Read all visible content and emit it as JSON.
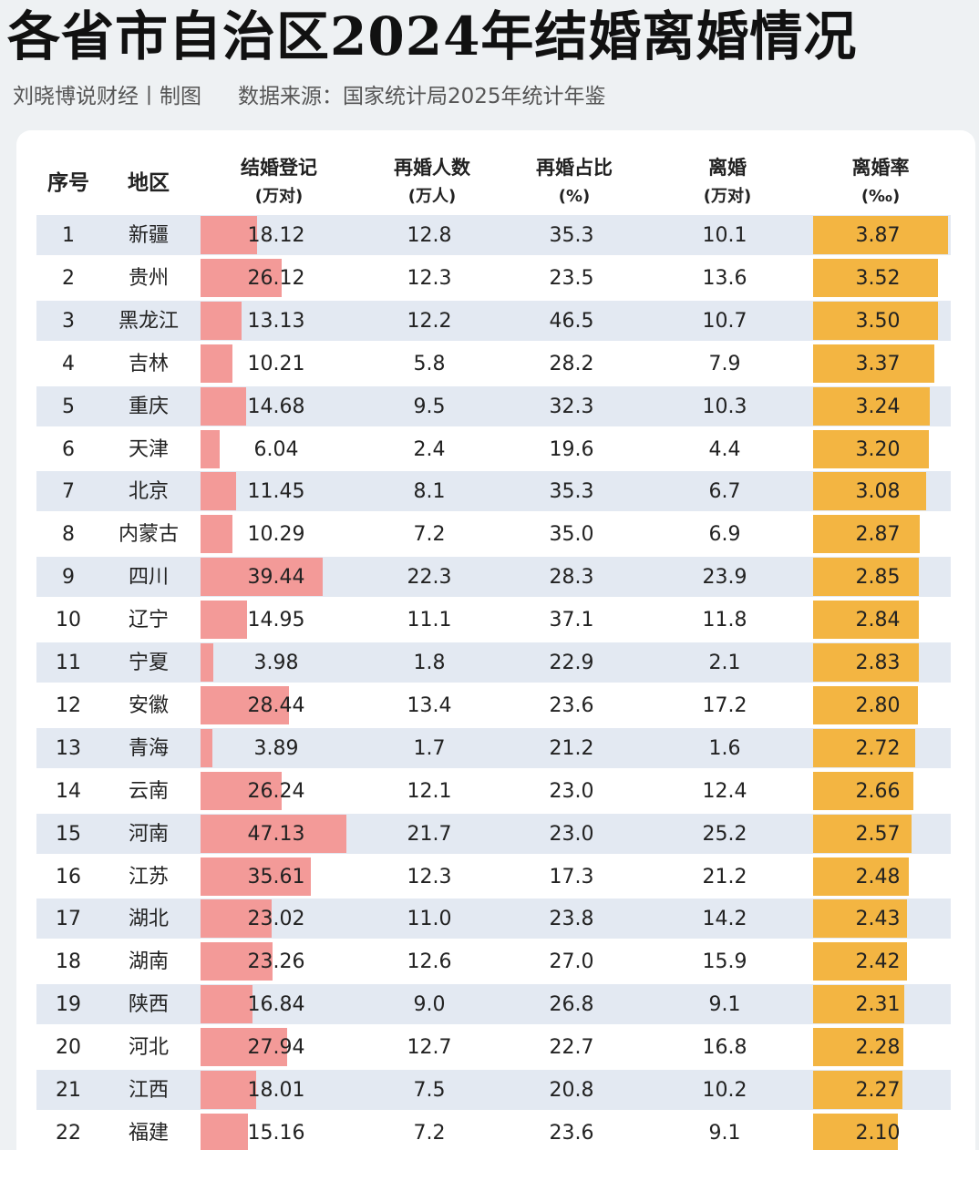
{
  "header": {
    "title": "各省市自治区2024年结婚离婚情况",
    "author": "刘晓博说财经丨制图",
    "source": "数据来源：国家统计局2025年统计年鉴"
  },
  "columns": [
    {
      "label": "序号",
      "unit": ""
    },
    {
      "label": "地区",
      "unit": ""
    },
    {
      "label": "结婚登记",
      "unit": "(万对)"
    },
    {
      "label": "再婚人数",
      "unit": "(万人)"
    },
    {
      "label": "再婚占比",
      "unit": "(%)"
    },
    {
      "label": "离婚",
      "unit": "(万对)"
    },
    {
      "label": "离婚率",
      "unit": "(‰)"
    }
  ],
  "colors": {
    "marriage_bar": "#f39a98",
    "divorce_rate_bar": "#f3b542",
    "row_alt": "#e3e9f2"
  },
  "rows": [
    {
      "rank": "1",
      "region": "新疆",
      "marriage": "18.12",
      "remarry": "12.8",
      "remarry_pct": "35.3",
      "divorce": "10.1",
      "divorce_rate": "3.87"
    },
    {
      "rank": "2",
      "region": "贵州",
      "marriage": "26.12",
      "remarry": "12.3",
      "remarry_pct": "23.5",
      "divorce": "13.6",
      "divorce_rate": "3.52"
    },
    {
      "rank": "3",
      "region": "黑龙江",
      "marriage": "13.13",
      "remarry": "12.2",
      "remarry_pct": "46.5",
      "divorce": "10.7",
      "divorce_rate": "3.50"
    },
    {
      "rank": "4",
      "region": "吉林",
      "marriage": "10.21",
      "remarry": "5.8",
      "remarry_pct": "28.2",
      "divorce": "7.9",
      "divorce_rate": "3.37"
    },
    {
      "rank": "5",
      "region": "重庆",
      "marriage": "14.68",
      "remarry": "9.5",
      "remarry_pct": "32.3",
      "divorce": "10.3",
      "divorce_rate": "3.24"
    },
    {
      "rank": "6",
      "region": "天津",
      "marriage": "6.04",
      "remarry": "2.4",
      "remarry_pct": "19.6",
      "divorce": "4.4",
      "divorce_rate": "3.20"
    },
    {
      "rank": "7",
      "region": "北京",
      "marriage": "11.45",
      "remarry": "8.1",
      "remarry_pct": "35.3",
      "divorce": "6.7",
      "divorce_rate": "3.08"
    },
    {
      "rank": "8",
      "region": "内蒙古",
      "marriage": "10.29",
      "remarry": "7.2",
      "remarry_pct": "35.0",
      "divorce": "6.9",
      "divorce_rate": "2.87"
    },
    {
      "rank": "9",
      "region": "四川",
      "marriage": "39.44",
      "remarry": "22.3",
      "remarry_pct": "28.3",
      "divorce": "23.9",
      "divorce_rate": "2.85"
    },
    {
      "rank": "10",
      "region": "辽宁",
      "marriage": "14.95",
      "remarry": "11.1",
      "remarry_pct": "37.1",
      "divorce": "11.8",
      "divorce_rate": "2.84"
    },
    {
      "rank": "11",
      "region": "宁夏",
      "marriage": "3.98",
      "remarry": "1.8",
      "remarry_pct": "22.9",
      "divorce": "2.1",
      "divorce_rate": "2.83"
    },
    {
      "rank": "12",
      "region": "安徽",
      "marriage": "28.44",
      "remarry": "13.4",
      "remarry_pct": "23.6",
      "divorce": "17.2",
      "divorce_rate": "2.80"
    },
    {
      "rank": "13",
      "region": "青海",
      "marriage": "3.89",
      "remarry": "1.7",
      "remarry_pct": "21.2",
      "divorce": "1.6",
      "divorce_rate": "2.72"
    },
    {
      "rank": "14",
      "region": "云南",
      "marriage": "26.24",
      "remarry": "12.1",
      "remarry_pct": "23.0",
      "divorce": "12.4",
      "divorce_rate": "2.66"
    },
    {
      "rank": "15",
      "region": "河南",
      "marriage": "47.13",
      "remarry": "21.7",
      "remarry_pct": "23.0",
      "divorce": "25.2",
      "divorce_rate": "2.57"
    },
    {
      "rank": "16",
      "region": "江苏",
      "marriage": "35.61",
      "remarry": "12.3",
      "remarry_pct": "17.3",
      "divorce": "21.2",
      "divorce_rate": "2.48"
    },
    {
      "rank": "17",
      "region": "湖北",
      "marriage": "23.02",
      "remarry": "11.0",
      "remarry_pct": "23.8",
      "divorce": "14.2",
      "divorce_rate": "2.43"
    },
    {
      "rank": "18",
      "region": "湖南",
      "marriage": "23.26",
      "remarry": "12.6",
      "remarry_pct": "27.0",
      "divorce": "15.9",
      "divorce_rate": "2.42"
    },
    {
      "rank": "19",
      "region": "陕西",
      "marriage": "16.84",
      "remarry": "9.0",
      "remarry_pct": "26.8",
      "divorce": "9.1",
      "divorce_rate": "2.31"
    },
    {
      "rank": "20",
      "region": "河北",
      "marriage": "27.94",
      "remarry": "12.7",
      "remarry_pct": "22.7",
      "divorce": "16.8",
      "divorce_rate": "2.28"
    },
    {
      "rank": "21",
      "region": "江西",
      "marriage": "18.01",
      "remarry": "7.5",
      "remarry_pct": "20.8",
      "divorce": "10.2",
      "divorce_rate": "2.27"
    },
    {
      "rank": "22",
      "region": "福建",
      "marriage": "15.16",
      "remarry": "7.2",
      "remarry_pct": "23.6",
      "divorce": "9.1",
      "divorce_rate": "2.10"
    }
  ],
  "chart_data": {
    "type": "table",
    "title": "各省市自治区2024年结婚离婚情况",
    "subtitle": "刘晓博说财经丨制图　数据来源：国家统计局2025年统计年鉴",
    "columns": [
      "序号",
      "地区",
      "结婚登记(万对)",
      "再婚人数(万人)",
      "再婚占比(%)",
      "离婚(万对)",
      "离婚率(‰)"
    ],
    "categories": [
      "新疆",
      "贵州",
      "黑龙江",
      "吉林",
      "重庆",
      "天津",
      "北京",
      "内蒙古",
      "四川",
      "辽宁",
      "宁夏",
      "安徽",
      "青海",
      "云南",
      "河南",
      "江苏",
      "湖北",
      "湖南",
      "陕西",
      "河北",
      "江西",
      "福建"
    ],
    "series": [
      {
        "name": "结婚登记(万对)",
        "values": [
          18.12,
          26.12,
          13.13,
          10.21,
          14.68,
          6.04,
          11.45,
          10.29,
          39.44,
          14.95,
          3.98,
          28.44,
          3.89,
          26.24,
          47.13,
          35.61,
          23.02,
          23.26,
          16.84,
          27.94,
          18.01,
          15.16
        ]
      },
      {
        "name": "再婚人数(万人)",
        "values": [
          12.8,
          12.3,
          12.2,
          5.8,
          9.5,
          2.4,
          8.1,
          7.2,
          22.3,
          11.1,
          1.8,
          13.4,
          1.7,
          12.1,
          21.7,
          12.3,
          11.0,
          12.6,
          9.0,
          12.7,
          7.5,
          7.2
        ]
      },
      {
        "name": "再婚占比(%)",
        "values": [
          35.3,
          23.5,
          46.5,
          28.2,
          32.3,
          19.6,
          35.3,
          35.0,
          28.3,
          37.1,
          22.9,
          23.6,
          21.2,
          23.0,
          23.0,
          17.3,
          23.8,
          27.0,
          26.8,
          22.7,
          20.8,
          23.6
        ]
      },
      {
        "name": "离婚(万对)",
        "values": [
          10.1,
          13.6,
          10.7,
          7.9,
          10.3,
          4.4,
          6.7,
          6.9,
          23.9,
          11.8,
          2.1,
          17.2,
          1.6,
          12.4,
          25.2,
          21.2,
          14.2,
          15.9,
          9.1,
          16.8,
          10.2,
          9.1
        ]
      },
      {
        "name": "离婚率(‰)",
        "values": [
          3.87,
          3.52,
          3.5,
          3.37,
          3.24,
          3.2,
          3.08,
          2.87,
          2.85,
          2.84,
          2.83,
          2.8,
          2.72,
          2.66,
          2.57,
          2.48,
          2.43,
          2.42,
          2.31,
          2.28,
          2.27,
          2.1
        ]
      }
    ]
  }
}
